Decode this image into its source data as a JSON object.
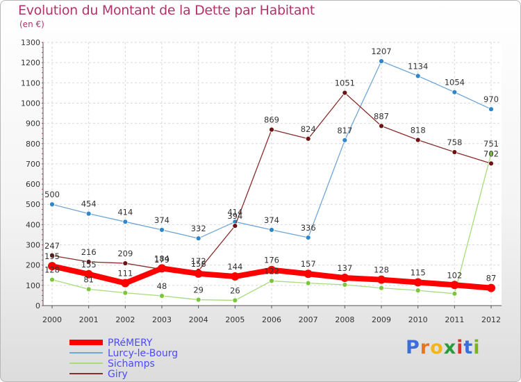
{
  "title": "Evolution du Montant de la Dette par Habitant",
  "unit": "(en €)",
  "logo": {
    "letters": [
      "P",
      "r",
      "o",
      "x",
      "i",
      "t",
      "i"
    ],
    "colors": [
      "#3a6fd8",
      "#e8741c",
      "#f2b51c",
      "#2a9a3a",
      "#d8342c",
      "#3a6fd8",
      "#7ab31c"
    ]
  },
  "chart_data": {
    "type": "line",
    "title": "Evolution du Montant de la Dette par Habitant",
    "ylabel": "(en €)",
    "xlabel": "",
    "categories": [
      "2000",
      "2001",
      "2002",
      "2003",
      "2004",
      "2005",
      "2006",
      "2007",
      "2008",
      "2009",
      "2010",
      "2011",
      "2012"
    ],
    "ylim": [
      0,
      1300
    ],
    "yticks": [
      0,
      100,
      200,
      300,
      400,
      500,
      600,
      700,
      800,
      900,
      1000,
      1100,
      1200,
      1300
    ],
    "grid": true,
    "legend": "bottom-left",
    "series": [
      {
        "name": "PRéMERY",
        "color": "#ff0000",
        "marker": "#ff0000",
        "width": 8,
        "values": [
          195,
          155,
          111,
          184,
          158,
          144,
          176,
          157,
          137,
          128,
          115,
          102,
          87
        ],
        "labels": [
          "195",
          "155",
          "111",
          "184",
          "158",
          "144",
          "176",
          "157",
          "137",
          "128",
          "115",
          "102",
          "87"
        ]
      },
      {
        "name": "Lurcy-le-Bourg",
        "color": "#6fa6d6",
        "marker": "#2f86c9",
        "width": 1.3,
        "values": [
          500,
          454,
          414,
          374,
          332,
          414,
          374,
          336,
          817,
          1207,
          1134,
          1054,
          970
        ],
        "labels": [
          "500",
          "454",
          "414",
          "374",
          "332",
          "414",
          "374",
          "336",
          "817",
          "1207",
          "1134",
          "1054",
          "970"
        ]
      },
      {
        "name": "Sichamps",
        "color": "#a6dc7a",
        "marker": "#7cc63c",
        "width": 1.3,
        "values": [
          128,
          81,
          63,
          48,
          29,
          26,
          122,
          111,
          103,
          87,
          75,
          59,
          751
        ],
        "labels": [
          "128",
          "81",
          "",
          "48",
          "29",
          "26",
          "122",
          "",
          "",
          "",
          "",
          "",
          "751"
        ]
      },
      {
        "name": "Giry",
        "color": "#8a2a2a",
        "marker": "#6b1414",
        "width": 1.3,
        "values": [
          247,
          216,
          209,
          179,
          172,
          394,
          869,
          824,
          1051,
          887,
          818,
          758,
          702
        ],
        "labels": [
          "247",
          "216",
          "209",
          "179",
          "172",
          "394",
          "869",
          "824",
          "1051",
          "887",
          "818",
          "758",
          "702"
        ]
      }
    ]
  }
}
